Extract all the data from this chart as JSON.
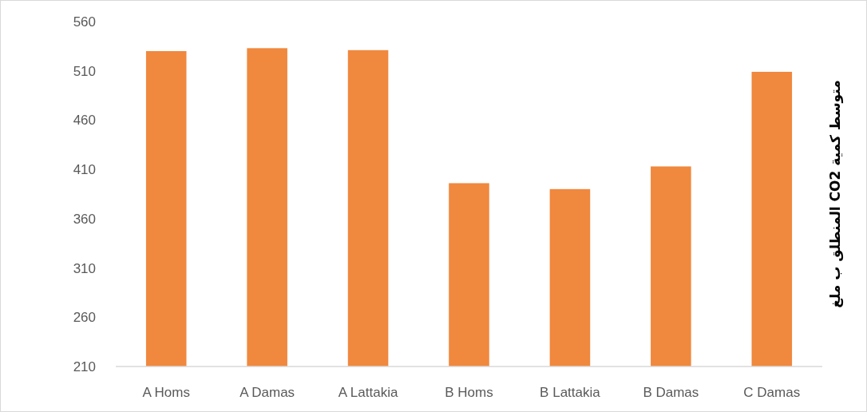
{
  "chart_data": {
    "type": "bar",
    "ylabel": "متوسط كمية CO2 المنطلق ب ملغ",
    "categories": [
      "A Homs",
      "A Damas",
      "A Lattakia",
      "B Homs",
      "B Lattakia",
      "B Damas",
      "C Damas"
    ],
    "values": [
      530,
      533,
      531,
      396,
      390,
      413,
      509
    ],
    "color": "#f0883e",
    "ylim": [
      210,
      560
    ],
    "yticks": [
      210,
      260,
      310,
      360,
      410,
      460,
      510,
      560
    ]
  }
}
